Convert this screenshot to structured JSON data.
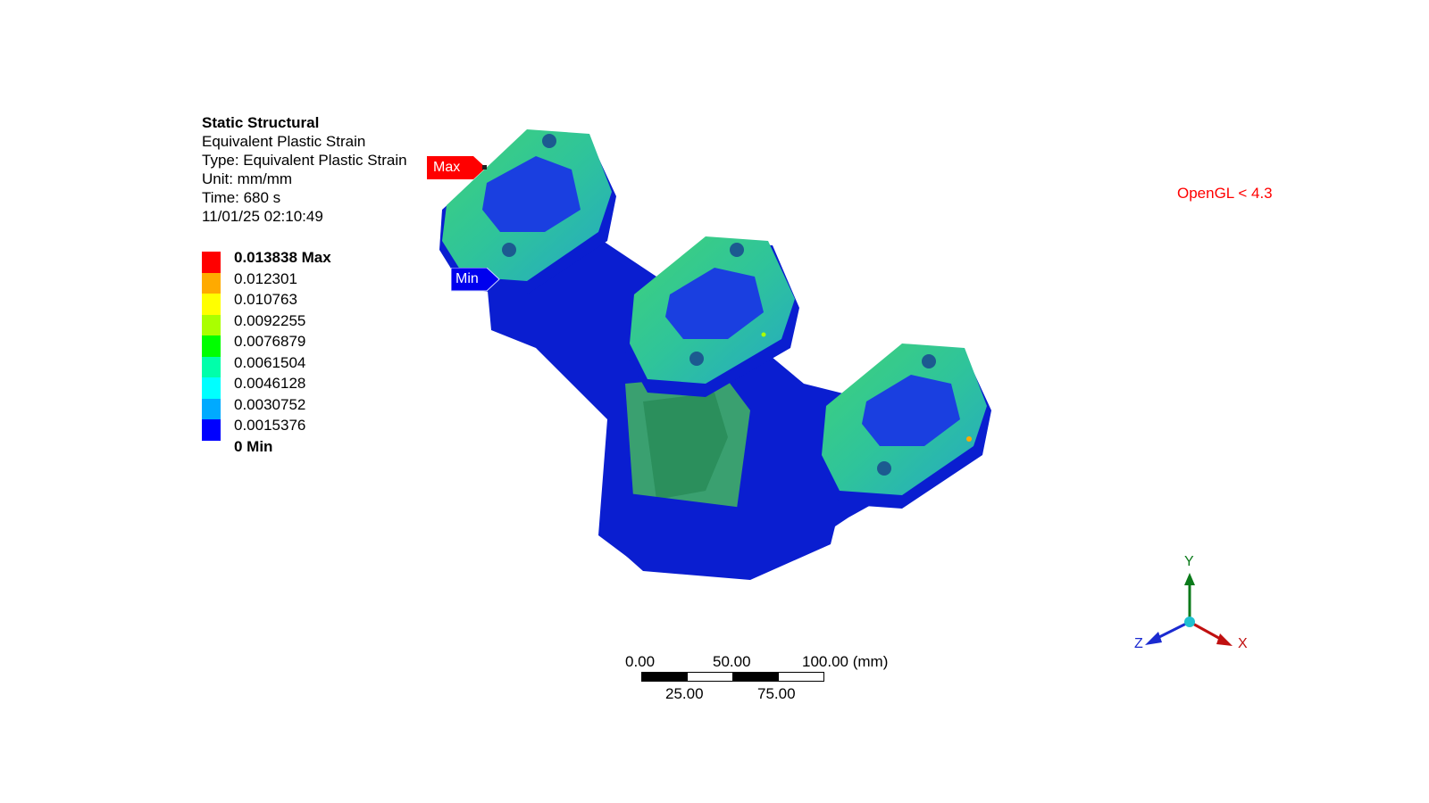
{
  "info": {
    "title": "Static Structural",
    "result": "Equivalent Plastic Strain",
    "type": "Type: Equivalent Plastic Strain",
    "unit": "Unit: mm/mm",
    "time": "Time: 680 s",
    "timestamp": "11/01/25 02:10:49"
  },
  "legend": {
    "labels": [
      "0.013838 Max",
      "0.012301",
      "0.010763",
      "0.0092255",
      "0.0076879",
      "0.0061504",
      "0.0046128",
      "0.0030752",
      "0.0015376",
      "0 Min"
    ],
    "colors": [
      "#ff0000",
      "#ffaa00",
      "#ffff00",
      "#aaff00",
      "#00ff00",
      "#00ffaa",
      "#00ffff",
      "#00aaff",
      "#0000ff"
    ]
  },
  "viewport": {
    "opengl_notice": "OpenGL < 4.3",
    "max_tag": "Max",
    "min_tag": "Min"
  },
  "scale_bar": {
    "top_labels": [
      "0.00",
      "50.00",
      "100.00 (mm)"
    ],
    "bottom_labels": [
      "25.00",
      "75.00"
    ]
  },
  "triad": {
    "y": "Y",
    "x": "X",
    "z": "Z"
  }
}
